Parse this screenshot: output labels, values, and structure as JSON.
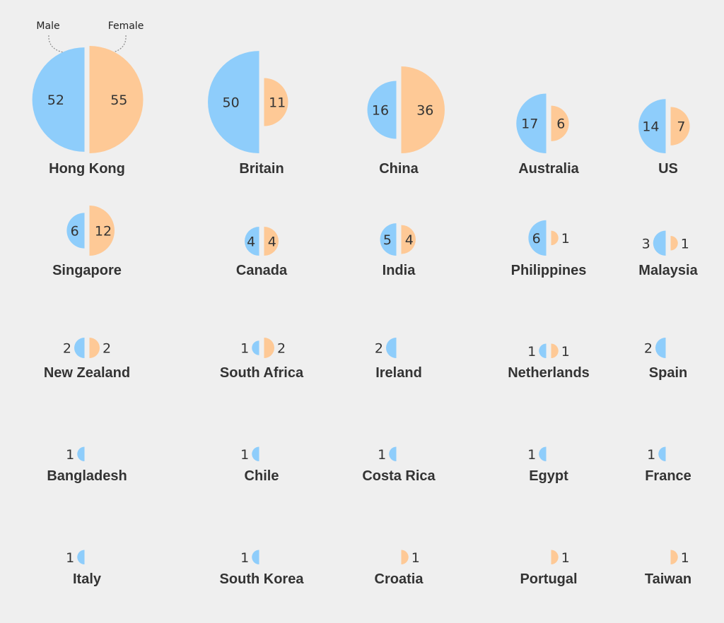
{
  "legend": {
    "male_label": "Male",
    "female_label": "Female"
  },
  "colors": {
    "male": "#8ecdfb",
    "female": "#fec996",
    "background": "#efefef",
    "text": "#333333"
  },
  "chart_data": {
    "type": "semicircle-pairs",
    "title": "",
    "value_encoding": "semicircle area",
    "series": [
      {
        "name": "Male",
        "key": "male",
        "side": "left"
      },
      {
        "name": "Female",
        "key": "female",
        "side": "right"
      }
    ],
    "items": [
      {
        "country": "Hong Kong",
        "male": 52,
        "female": 55
      },
      {
        "country": "Britain",
        "male": 50,
        "female": 11
      },
      {
        "country": "China",
        "male": 16,
        "female": 36
      },
      {
        "country": "Australia",
        "male": 17,
        "female": 6
      },
      {
        "country": "US",
        "male": 14,
        "female": 7
      },
      {
        "country": "Singapore",
        "male": 6,
        "female": 12
      },
      {
        "country": "Canada",
        "male": 4,
        "female": 4
      },
      {
        "country": "India",
        "male": 5,
        "female": 4
      },
      {
        "country": "Philippines",
        "male": 6,
        "female": 1
      },
      {
        "country": "Malaysia",
        "male": 3,
        "female": 1
      },
      {
        "country": "New Zealand",
        "male": 2,
        "female": 2
      },
      {
        "country": "South Africa",
        "male": 1,
        "female": 2
      },
      {
        "country": "Ireland",
        "male": 2,
        "female": 0
      },
      {
        "country": "Netherlands",
        "male": 1,
        "female": 1
      },
      {
        "country": "Spain",
        "male": 2,
        "female": 0
      },
      {
        "country": "Bangladesh",
        "male": 1,
        "female": 0
      },
      {
        "country": "Chile",
        "male": 1,
        "female": 0
      },
      {
        "country": "Costa Rica",
        "male": 1,
        "female": 0
      },
      {
        "country": "Egypt",
        "male": 1,
        "female": 0
      },
      {
        "country": "France",
        "male": 1,
        "female": 0
      },
      {
        "country": "Italy",
        "male": 1,
        "female": 0
      },
      {
        "country": "South Korea",
        "male": 1,
        "female": 0
      },
      {
        "country": "Croatia",
        "male": 0,
        "female": 1
      },
      {
        "country": "Portugal",
        "male": 0,
        "female": 1
      },
      {
        "country": "Taiwan",
        "male": 0,
        "female": 1
      }
    ]
  }
}
